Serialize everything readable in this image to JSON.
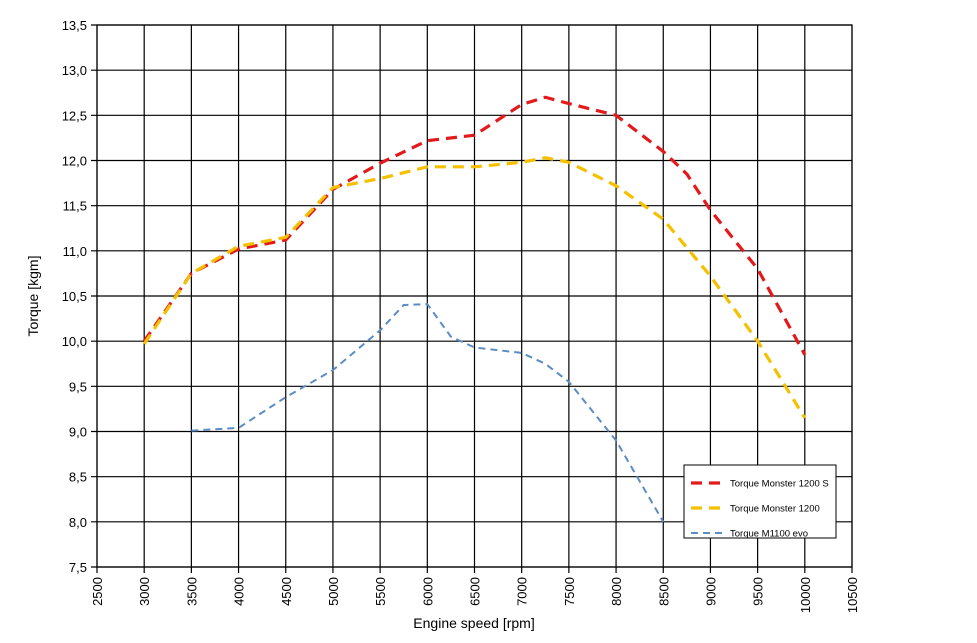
{
  "chart_data": {
    "type": "line",
    "title": "",
    "xlabel": "Engine speed [rpm]",
    "ylabel": "Torque [kgm]",
    "xlim": [
      2500,
      10500
    ],
    "ylim": [
      7.5,
      13.5
    ],
    "xticks": [
      2500,
      3000,
      3500,
      4000,
      4500,
      5000,
      5500,
      6000,
      6500,
      7000,
      7500,
      8000,
      8500,
      9000,
      9500,
      10000,
      10500
    ],
    "yticks": [
      "7,5",
      "8,0",
      "8,5",
      "9,0",
      "9,5",
      "10,0",
      "10,5",
      "11,0",
      "11,5",
      "12,0",
      "12,5",
      "13,0",
      "13,5"
    ],
    "grid": true,
    "legend_position": "bottom-right",
    "series": [
      {
        "name": "Torque Monster 1200 S",
        "color": "#e31a1c",
        "dash": "long",
        "x": [
          3000,
          3500,
          4000,
          4500,
          5000,
          5500,
          6000,
          6500,
          7000,
          7250,
          7500,
          8000,
          8500,
          8750,
          9000,
          9500,
          10000
        ],
        "y": [
          10.0,
          10.75,
          11.02,
          11.12,
          11.68,
          11.97,
          12.22,
          12.28,
          12.62,
          12.7,
          12.63,
          12.5,
          12.1,
          11.85,
          11.45,
          10.8,
          9.85
        ]
      },
      {
        "name": "Torque Monster 1200",
        "color": "#f5c000",
        "dash": "long",
        "x": [
          3000,
          3500,
          4000,
          4500,
          5000,
          5500,
          6000,
          6500,
          7000,
          7250,
          7500,
          8000,
          8500,
          9000,
          9500,
          10000
        ],
        "y": [
          9.97,
          10.75,
          11.05,
          11.15,
          11.7,
          11.8,
          11.93,
          11.93,
          11.98,
          12.03,
          11.98,
          11.72,
          11.35,
          10.72,
          10.0,
          9.15
        ]
      },
      {
        "name": "Torque  M1100 evo",
        "color": "#5b8cc4",
        "dash": "short",
        "x": [
          3500,
          4000,
          4500,
          5000,
          5500,
          5750,
          6000,
          6250,
          6500,
          7000,
          7250,
          7500,
          8000,
          8500
        ],
        "y": [
          9.01,
          9.04,
          9.38,
          9.68,
          10.12,
          10.4,
          10.41,
          10.05,
          9.93,
          9.87,
          9.75,
          9.55,
          8.9,
          8.0
        ]
      }
    ]
  }
}
